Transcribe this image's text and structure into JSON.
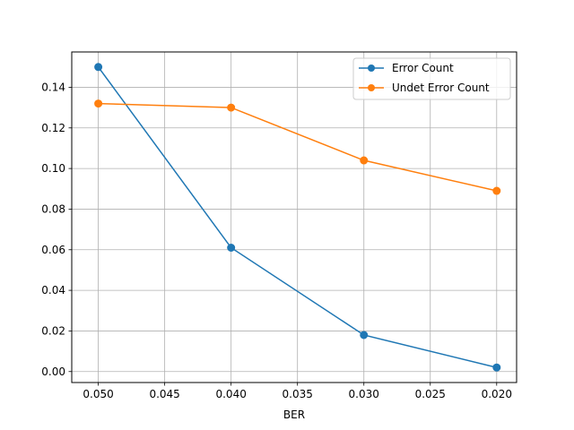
{
  "chart_data": {
    "type": "line",
    "title": "",
    "xlabel": "BER",
    "ylabel": "",
    "x": [
      0.05,
      0.04,
      0.03,
      0.02
    ],
    "x_ticks": [
      "0.050",
      "0.045",
      "0.040",
      "0.035",
      "0.030",
      "0.025",
      "0.020"
    ],
    "y_ticks": [
      "0.00",
      "0.02",
      "0.04",
      "0.06",
      "0.08",
      "0.10",
      "0.12",
      "0.14"
    ],
    "xlim": [
      0.052,
      0.0185
    ],
    "ylim": [
      -0.0054,
      0.1574
    ],
    "x_inverted": true,
    "grid": true,
    "legend_position": "top-right",
    "series": [
      {
        "name": "Error Count",
        "color": "#1f77b4",
        "marker": "circle",
        "values": [
          0.15,
          0.061,
          0.018,
          0.002
        ]
      },
      {
        "name": "Undet Error Count",
        "color": "#ff7f0e",
        "marker": "circle",
        "values": [
          0.132,
          0.13,
          0.104,
          0.089
        ]
      }
    ]
  }
}
